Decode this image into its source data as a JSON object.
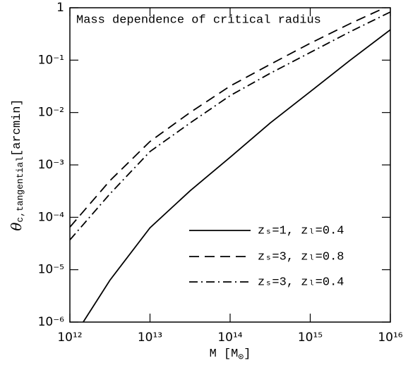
{
  "chart_data": {
    "type": "line",
    "title": "Mass dependence of critical radius",
    "x_label": {
      "text": "M [M",
      "subscript": "⊙",
      "close": "]"
    },
    "y_label": {
      "symbol": "θ",
      "subscript": "c,tangential",
      "unit": "[arcmin]"
    },
    "x": [
      1000000000000.0,
      3160000000000.0,
      10000000000000.0,
      31600000000000.0,
      100000000000000.0,
      316000000000000.0,
      1000000000000000.0,
      3160000000000000.0,
      1e+16
    ],
    "series": [
      {
        "name": "zₛ=1,  zₗ=0.4",
        "color": "#000000",
        "dash": "none",
        "values": [
          4e-07,
          6.3e-06,
          6.3e-05,
          0.00032,
          0.0014,
          0.0063,
          0.025,
          0.1,
          0.38
        ]
      },
      {
        "name": "zₛ=3,  zₗ=0.8",
        "color": "#000000",
        "dash": "14 8",
        "values": [
          6.5e-05,
          0.0005,
          0.0028,
          0.01,
          0.032,
          0.083,
          0.21,
          0.5,
          1.12
        ]
      },
      {
        "name": "zₛ=3,  zₗ=0.4",
        "color": "#000000",
        "dash": "12 5 2 5",
        "values": [
          3.7e-05,
          0.00028,
          0.0018,
          0.0063,
          0.021,
          0.056,
          0.14,
          0.35,
          0.83
        ]
      }
    ],
    "xlim": [
      1000000000000.0,
      1e+16
    ],
    "ylim": [
      1e-06,
      1
    ],
    "log_x": true,
    "log_y": true,
    "xticks": [
      {
        "value": 1000000000000.0,
        "label": "10¹²"
      },
      {
        "value": 10000000000000.0,
        "label": "10¹³"
      },
      {
        "value": 100000000000000.0,
        "label": "10¹⁴"
      },
      {
        "value": 1000000000000000.0,
        "label": "10¹⁵"
      },
      {
        "value": 1e+16,
        "label": "10¹⁶"
      }
    ],
    "yticks": [
      {
        "value": 1e-06,
        "label": "10⁻⁶"
      },
      {
        "value": 1e-05,
        "label": "10⁻⁵"
      },
      {
        "value": 0.0001,
        "label": "10⁻⁴"
      },
      {
        "value": 0.001,
        "label": "10⁻³"
      },
      {
        "value": 0.01,
        "label": "10⁻²"
      },
      {
        "value": 0.1,
        "label": "10⁻¹"
      },
      1
    ],
    "legend": "lower right",
    "grid": false
  }
}
